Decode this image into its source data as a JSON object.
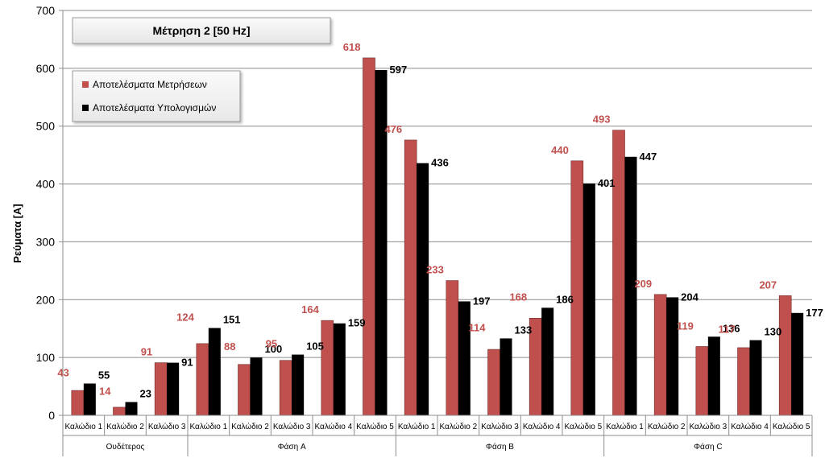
{
  "chart_data": {
    "type": "bar",
    "title": "Μέτρηση 2 [50 Hz]",
    "ylabel": "Ρεύματα [A]",
    "xlabel": "",
    "ylim": [
      0,
      700
    ],
    "yticks": [
      0,
      100,
      200,
      300,
      400,
      500,
      600,
      700
    ],
    "grid": true,
    "legend_position": "top-left",
    "groups": [
      {
        "name": "Ουδέτερος",
        "size": 3
      },
      {
        "name": "Φάση A",
        "size": 5
      },
      {
        "name": "Φάση B",
        "size": 5
      },
      {
        "name": "Φάση C",
        "size": 5
      }
    ],
    "categories": [
      "Καλώδιο 1",
      "Καλώδιο 2",
      "Καλώδιο 3",
      "Καλώδιο 1",
      "Καλώδιο 2",
      "Καλώδιο 3",
      "Καλώδιο 4",
      "Καλώδιο 5",
      "Καλώδιο 1",
      "Καλώδιο 2",
      "Καλώδιο 3",
      "Καλώδιο 4",
      "Καλώδιο 5",
      "Καλώδιο 1",
      "Καλώδιο 2",
      "Καλώδιο 3",
      "Καλώδιο 4",
      "Καλώδιο 5"
    ],
    "series": [
      {
        "name": "Αποτελέσματα Μετρήσεων",
        "color": "#c0504d",
        "values": [
          43,
          14,
          91,
          124,
          88,
          95,
          164,
          618,
          476,
          233,
          114,
          168,
          440,
          493,
          209,
          119,
          117,
          207
        ]
      },
      {
        "name": "Αποτελέσματα Υπολογισμών",
        "color": "#000000",
        "values": [
          55,
          23,
          91,
          151,
          100,
          105,
          159,
          597,
          436,
          197,
          133,
          186,
          401,
          447,
          204,
          136,
          130,
          177
        ]
      }
    ]
  }
}
